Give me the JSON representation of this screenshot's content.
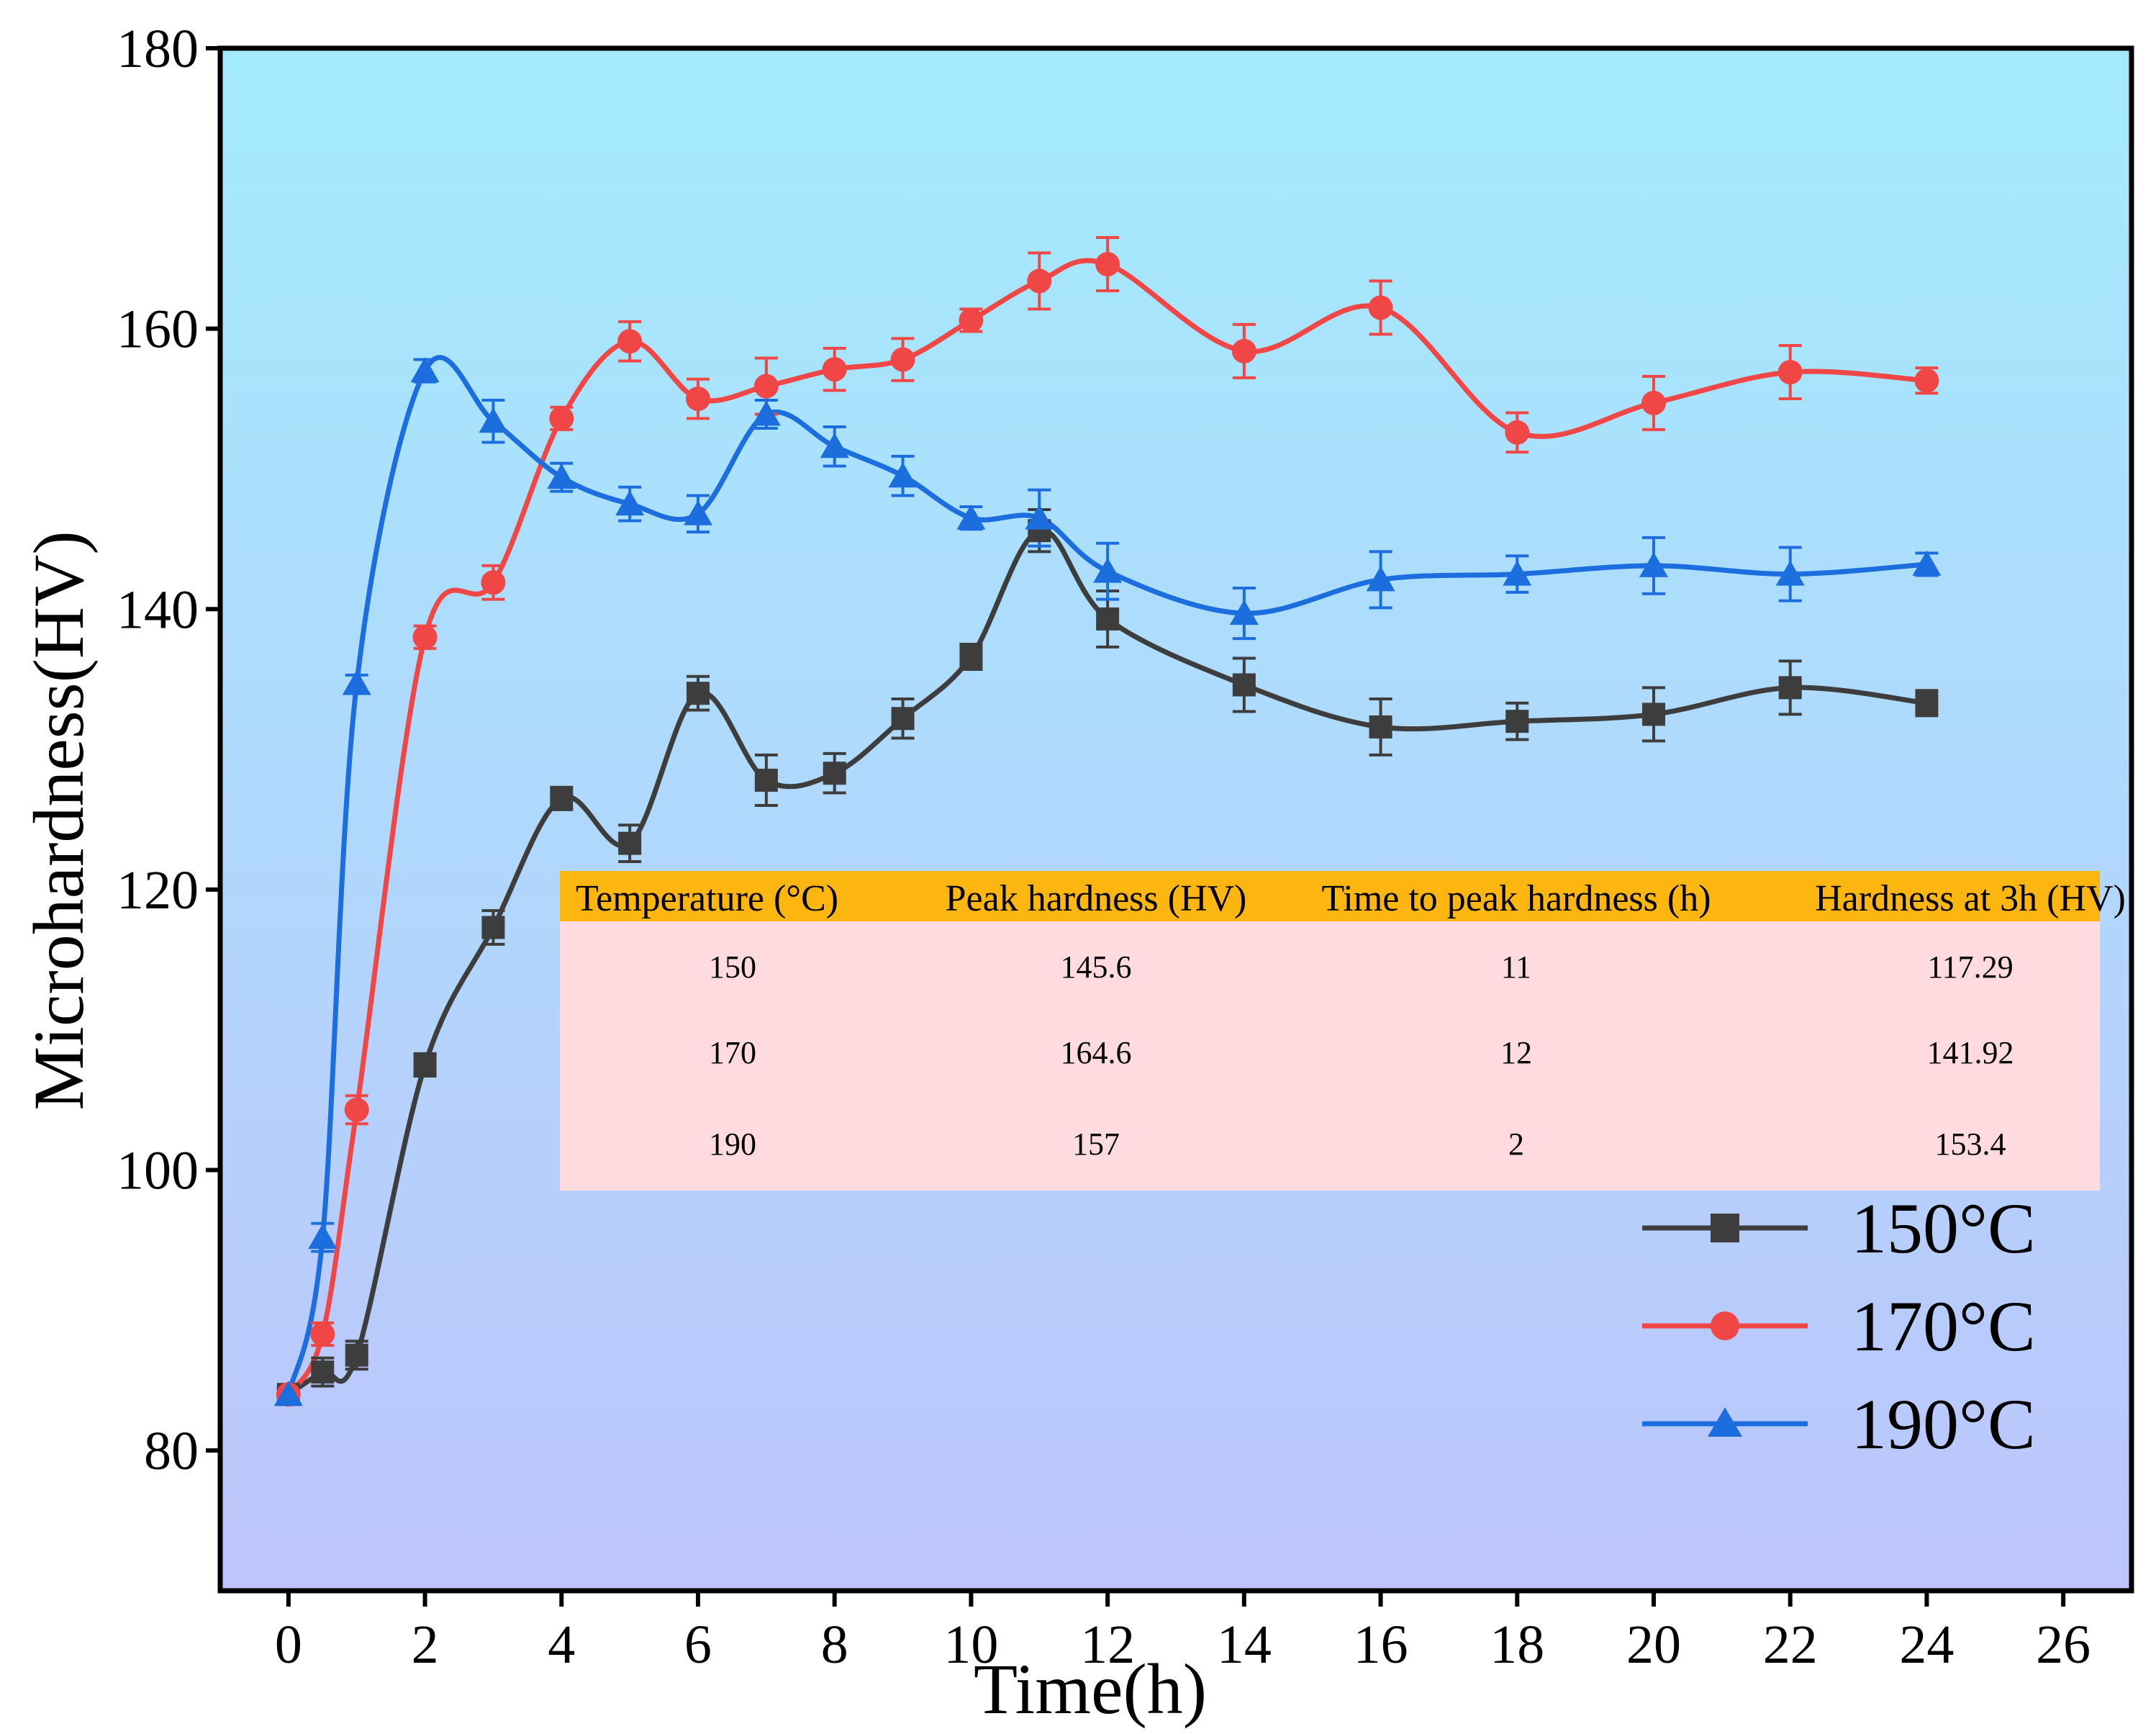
{
  "chart_data": {
    "type": "line",
    "title": "",
    "xlabel": "Time(h)",
    "ylabel": "Microhardness(HV)",
    "xlim": [
      -1,
      27
    ],
    "ylim": [
      70,
      180
    ],
    "xticks": [
      0,
      2,
      4,
      6,
      8,
      10,
      12,
      14,
      16,
      18,
      20,
      22,
      24,
      26
    ],
    "yticks": [
      80,
      100,
      120,
      140,
      160,
      180
    ],
    "x": [
      0,
      0.5,
      1,
      2,
      3,
      4,
      5,
      6,
      7,
      8,
      9,
      10,
      11,
      12,
      14,
      16,
      18,
      20,
      22,
      24
    ],
    "series": [
      {
        "name": "150°C",
        "color": "#3d3d3d",
        "marker": "square",
        "values": [
          84,
          85.6,
          86.8,
          107.5,
          117.3,
          126.5,
          123.3,
          134,
          127.8,
          128.3,
          132.2,
          136.6,
          145.6,
          139.3,
          134.6,
          131.6,
          132,
          132.5,
          134.4,
          133.3
        ],
        "errors": [
          0.5,
          1.0,
          1.0,
          0.8,
          1.2,
          0.8,
          1.3,
          1.2,
          1.8,
          1.4,
          1.4,
          0.9,
          1.5,
          2.0,
          1.9,
          2.0,
          1.3,
          1.9,
          1.9,
          0.9
        ]
      },
      {
        "name": "170°C",
        "color": "#f04646",
        "marker": "circle",
        "values": [
          84,
          88.3,
          104.3,
          138,
          141.9,
          153.6,
          159.1,
          155,
          155.9,
          157.1,
          157.8,
          160.6,
          163.4,
          164.6,
          158.4,
          161.5,
          152.6,
          154.7,
          156.9,
          156.3
        ],
        "errors": [
          0.5,
          0.8,
          1.0,
          0.8,
          1.2,
          0.8,
          1.4,
          1.4,
          2.0,
          1.5,
          1.5,
          0.8,
          2.0,
          1.9,
          1.9,
          1.9,
          1.4,
          1.9,
          1.9,
          0.9
        ]
      },
      {
        "name": "190°C",
        "color": "#1c6ede",
        "marker": "triangle",
        "values": [
          84,
          95.2,
          134.7,
          157,
          153.4,
          149.4,
          147.5,
          146.8,
          153.9,
          151.6,
          149.5,
          146.5,
          146.5,
          142.7,
          139.7,
          142.1,
          142.5,
          143.1,
          142.5,
          143.2
        ],
        "errors": [
          0.4,
          1.0,
          0.6,
          0.8,
          1.5,
          1.0,
          1.2,
          1.3,
          1.0,
          1.4,
          1.4,
          0.8,
          2.0,
          2.0,
          1.8,
          2.0,
          1.3,
          2.0,
          1.9,
          0.8
        ]
      }
    ],
    "legend_position": "bottom-right",
    "inset_table": {
      "columns": [
        "Temperature (°C)",
        "Peak hardness (HV)",
        "Time to peak hardness (h)",
        "Hardness at 3h (HV)"
      ],
      "rows": [
        [
          "150",
          "145.6",
          "11",
          "117.29"
        ],
        [
          "170",
          "164.6",
          "12",
          "141.92"
        ],
        [
          "190",
          "157",
          "2",
          "153.4"
        ]
      ]
    }
  },
  "colors": {
    "bg_top": "#a3ebfc",
    "bg_bottom": "#bdc5fc",
    "table_header": "#fdb60f",
    "table_body": "#ffdade"
  }
}
